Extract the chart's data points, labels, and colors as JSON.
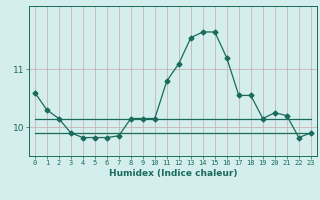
{
  "xlabel": "Humidex (Indice chaleur)",
  "x_values": [
    0,
    1,
    2,
    3,
    4,
    5,
    6,
    7,
    8,
    9,
    10,
    11,
    12,
    13,
    14,
    15,
    16,
    17,
    18,
    19,
    20,
    21,
    22,
    23
  ],
  "line1": [
    10.6,
    10.3,
    10.15,
    9.9,
    9.82,
    9.82,
    9.82,
    9.85,
    10.15,
    10.15,
    10.15,
    10.8,
    11.1,
    11.55,
    11.65,
    11.65,
    11.2,
    10.55,
    10.55,
    10.15,
    10.25,
    10.2,
    9.82,
    9.9
  ],
  "line2": [
    10.15,
    10.15,
    10.15,
    10.15,
    10.15,
    10.15,
    10.15,
    10.15,
    10.15,
    10.15,
    10.15,
    10.15,
    10.15,
    10.15,
    10.15,
    10.15,
    10.15,
    10.15,
    10.15,
    10.15,
    10.15,
    10.15,
    10.15,
    10.15
  ],
  "line3": [
    9.9,
    9.9,
    9.9,
    9.9,
    9.9,
    9.9,
    9.9,
    9.9,
    9.9,
    9.9,
    9.9,
    9.9,
    9.9,
    9.9,
    9.9,
    9.9,
    9.9,
    9.9,
    9.9,
    9.9,
    9.9,
    9.9,
    9.9,
    9.9
  ],
  "line_color": "#1a6b5a",
  "bg_color": "#d4eeed",
  "grid_color_v": "#c8a8a8",
  "grid_color_h": "#c8a8a8",
  "axis_color": "#1a6b5a",
  "ylim_min": 9.5,
  "ylim_max": 12.1,
  "yticks": [
    10,
    11
  ],
  "marker": "D",
  "marker_size": 2.5,
  "line_width": 0.9
}
